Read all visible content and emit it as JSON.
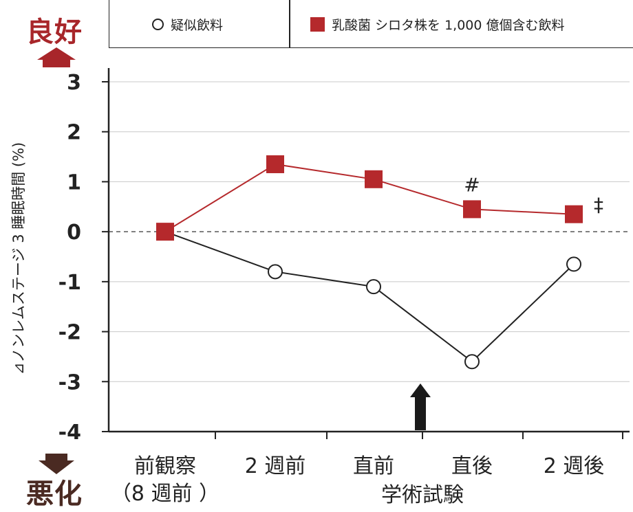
{
  "labels": {
    "good": "良好",
    "bad": "悪化"
  },
  "legend": [
    {
      "name": "疑似飲料",
      "marker": "circle"
    },
    {
      "name": "乳酸菌 シロタ株を 1,000 億個含む飲料",
      "marker": "square"
    }
  ],
  "colors": {
    "series1": "#222222",
    "series2": "#b5292c",
    "good": "#a8262a",
    "bad": "#4a2a22"
  },
  "chart_data": {
    "type": "line",
    "xlabel": "学術試験",
    "ylabel": "⊿ノンレムステージ 3 睡眠時間 (%)",
    "categories": [
      "前観察\n（8 週前 ）",
      "2 週前",
      "直前",
      "直後",
      "2 週後"
    ],
    "ylim": [
      -4,
      3
    ],
    "yticks": [
      3,
      2,
      1,
      0,
      -1,
      -2,
      -3,
      -4
    ],
    "grid": true,
    "series": [
      {
        "name": "疑似飲料",
        "marker": "circle",
        "values": [
          0,
          -0.8,
          -1.1,
          -2.6,
          -0.65
        ]
      },
      {
        "name": "乳酸菌 シロタ株を 1,000 億個含む飲料",
        "marker": "square",
        "values": [
          0,
          1.35,
          1.05,
          0.45,
          0.35
        ]
      }
    ],
    "annotations": [
      {
        "text": "#",
        "category_index": 3,
        "series": 1
      },
      {
        "text": "‡",
        "category_index": 4,
        "series": 1
      }
    ],
    "event_arrow": {
      "between_categories": [
        2,
        3
      ]
    }
  }
}
